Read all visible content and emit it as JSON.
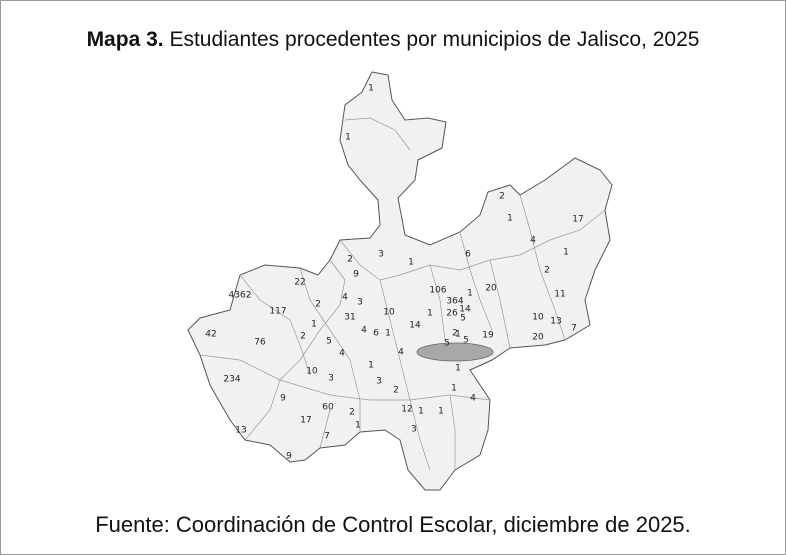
{
  "title": {
    "label": "Mapa 3.",
    "text": "Estudiantes procedentes por municipios de Jalisco, 2025"
  },
  "source": "Fuente: Coordinación de Control Escolar, diciembre de 2025.",
  "map": {
    "labels": [
      1,
      1,
      2,
      17,
      1,
      4,
      1,
      3,
      2,
      1,
      6,
      2,
      11,
      22,
      9,
      4362,
      106,
      20,
      1,
      4,
      3,
      2,
      117,
      364,
      14,
      26,
      5,
      10,
      31,
      1,
      14,
      1,
      10,
      13,
      7,
      42,
      76,
      2,
      1,
      5,
      4,
      6,
      1,
      2,
      5,
      5,
      19,
      20,
      4,
      4,
      234,
      10,
      3,
      1,
      3,
      1,
      1,
      4,
      2,
      9,
      60,
      2,
      17,
      1,
      12,
      1,
      1,
      13,
      7,
      3,
      9
    ]
  }
}
